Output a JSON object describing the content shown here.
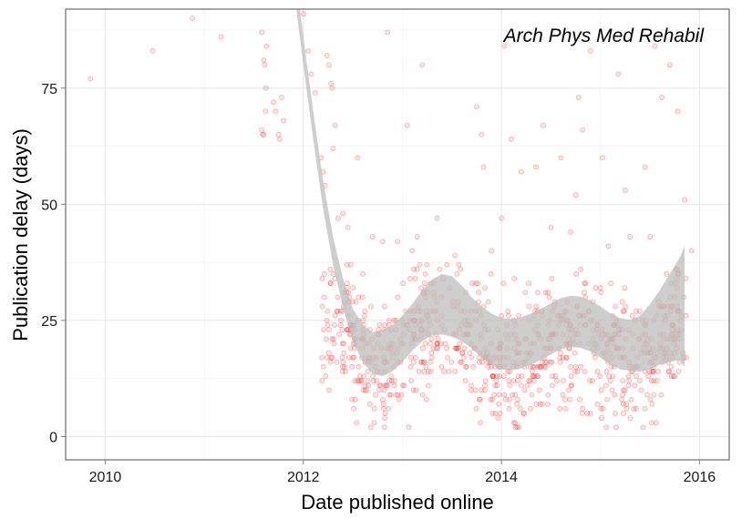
{
  "chart_data": {
    "type": "scatter",
    "title": "",
    "annotation": "Arch Phys Med Rehabil",
    "xlabel": "Date published online",
    "ylabel": "Publication delay (days)",
    "xlim": [
      2009.6,
      2016.3
    ],
    "ylim": [
      -5,
      92
    ],
    "x_ticks": [
      2010,
      2012,
      2014,
      2016
    ],
    "x_tick_labels": [
      "2010",
      "2012",
      "2014",
      "2016"
    ],
    "y_ticks": [
      0,
      25,
      50,
      75
    ],
    "y_tick_labels": [
      "0",
      "25",
      "50",
      "75"
    ],
    "grid": true,
    "point_color": "#e41a1c",
    "ribbon_color": "#bebebe",
    "points": [
      [
        2009.85,
        77
      ],
      [
        2010.48,
        83
      ],
      [
        2010.88,
        90
      ],
      [
        2011.17,
        86
      ],
      [
        2011.58,
        87
      ],
      [
        2011.6,
        81
      ],
      [
        2011.61,
        80
      ],
      [
        2011.62,
        75
      ],
      [
        2011.63,
        84
      ],
      [
        2011.58,
        66
      ],
      [
        2011.59,
        65
      ],
      [
        2011.6,
        65
      ],
      [
        2011.62,
        70
      ],
      [
        2011.7,
        72
      ],
      [
        2011.72,
        70
      ],
      [
        2011.75,
        65
      ],
      [
        2011.76,
        64
      ],
      [
        2011.78,
        73
      ],
      [
        2011.8,
        68
      ],
      [
        2012.0,
        91
      ],
      [
        2012.05,
        83
      ],
      [
        2012.08,
        78
      ],
      [
        2012.12,
        74
      ],
      [
        2012.18,
        60
      ],
      [
        2012.2,
        57
      ],
      [
        2012.22,
        54
      ],
      [
        2012.24,
        82
      ],
      [
        2012.26,
        80
      ],
      [
        2012.28,
        76
      ],
      [
        2012.29,
        75
      ],
      [
        2012.3,
        62
      ],
      [
        2012.32,
        67
      ],
      [
        2012.35,
        47
      ],
      [
        2012.4,
        48
      ],
      [
        2012.45,
        45
      ],
      [
        2012.55,
        60
      ],
      [
        2012.6,
        35
      ],
      [
        2012.7,
        43
      ],
      [
        2012.8,
        42
      ],
      [
        2012.85,
        87
      ],
      [
        2012.95,
        42
      ],
      [
        2013.1,
        40
      ],
      [
        2013.2,
        80
      ],
      [
        2013.05,
        67
      ],
      [
        2013.15,
        43
      ],
      [
        2013.35,
        47
      ],
      [
        2013.55,
        35
      ],
      [
        2013.75,
        71
      ],
      [
        2013.8,
        65
      ],
      [
        2013.82,
        58
      ],
      [
        2013.9,
        40
      ],
      [
        2014.0,
        47
      ],
      [
        2014.03,
        84
      ],
      [
        2014.1,
        64
      ],
      [
        2014.2,
        57
      ],
      [
        2014.35,
        58
      ],
      [
        2014.42,
        67
      ],
      [
        2014.5,
        45
      ],
      [
        2014.6,
        60
      ],
      [
        2014.7,
        44
      ],
      [
        2014.75,
        52
      ],
      [
        2014.78,
        73
      ],
      [
        2014.82,
        66
      ],
      [
        2014.9,
        83
      ],
      [
        2015.02,
        60
      ],
      [
        2015.08,
        41
      ],
      [
        2015.18,
        78
      ],
      [
        2015.25,
        53
      ],
      [
        2015.3,
        43
      ],
      [
        2015.45,
        58
      ],
      [
        2015.5,
        43
      ],
      [
        2015.55,
        84
      ],
      [
        2015.62,
        73
      ],
      [
        2015.7,
        80
      ],
      [
        2015.78,
        70
      ],
      [
        2015.85,
        51
      ],
      [
        2015.92,
        40
      ]
    ],
    "smooth": [
      [
        2011.9,
        100
      ],
      [
        2012.0,
        83
      ],
      [
        2012.1,
        67
      ],
      [
        2012.2,
        52
      ],
      [
        2012.3,
        40
      ],
      [
        2012.4,
        31
      ],
      [
        2012.5,
        24
      ],
      [
        2012.6,
        20
      ],
      [
        2012.7,
        18
      ],
      [
        2012.8,
        18
      ],
      [
        2012.9,
        19
      ],
      [
        2013.0,
        21
      ],
      [
        2013.1,
        23.5
      ],
      [
        2013.2,
        26
      ],
      [
        2013.3,
        27.8
      ],
      [
        2013.4,
        28.5
      ],
      [
        2013.5,
        28
      ],
      [
        2013.6,
        26.5
      ],
      [
        2013.7,
        24.5
      ],
      [
        2013.8,
        22.5
      ],
      [
        2013.9,
        21
      ],
      [
        2014.0,
        20
      ],
      [
        2014.1,
        19.8
      ],
      [
        2014.2,
        20.2
      ],
      [
        2014.3,
        21
      ],
      [
        2014.4,
        22
      ],
      [
        2014.5,
        23.2
      ],
      [
        2014.6,
        24.3
      ],
      [
        2014.7,
        24.8
      ],
      [
        2014.8,
        24.6
      ],
      [
        2014.9,
        23.8
      ],
      [
        2015.0,
        22.5
      ],
      [
        2015.1,
        21
      ],
      [
        2015.2,
        20
      ],
      [
        2015.3,
        19.6
      ],
      [
        2015.4,
        20
      ],
      [
        2015.5,
        21.5
      ],
      [
        2015.6,
        23.5
      ],
      [
        2015.7,
        25.5
      ],
      [
        2015.8,
        27.5
      ],
      [
        2015.85,
        28
      ]
    ],
    "ribbon_halfwidth": [
      3,
      3,
      3,
      3,
      3,
      3,
      3.5,
      4,
      4.5,
      5,
      5,
      5,
      5,
      5.5,
      6,
      6.5,
      6.5,
      6,
      5.5,
      5.5,
      5.5,
      5.5,
      5.5,
      5.5,
      5.5,
      5.5,
      5.5,
      5.5,
      5.5,
      5.5,
      5.5,
      5.5,
      5.5,
      5.5,
      5.5,
      6,
      7,
      8,
      9.5,
      11,
      13
    ]
  }
}
